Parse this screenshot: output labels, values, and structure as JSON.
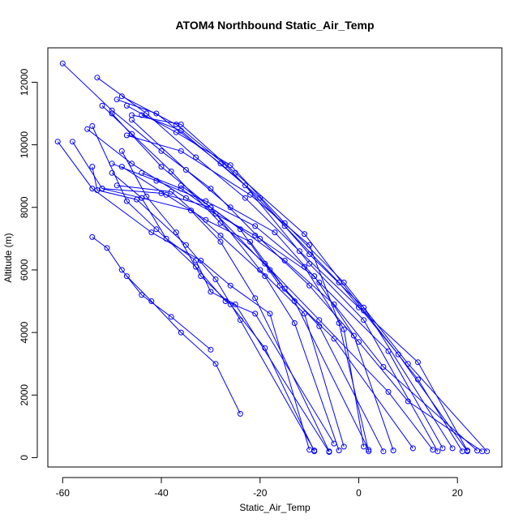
{
  "chart_data": {
    "type": "line",
    "title": "ATOM4 Northbound Static_Air_Temp",
    "xlabel": "Static_Air_Temp",
    "ylabel": "Altitude (m)",
    "xlim": [
      -63,
      29
    ],
    "ylim": [
      -300,
      13100
    ],
    "xticks": [
      -60,
      -40,
      -20,
      0,
      20
    ],
    "yticks": [
      0,
      2000,
      4000,
      6000,
      8000,
      10000,
      12000
    ],
    "grid": false,
    "legend": "none",
    "color": "#0000ff",
    "series": [
      {
        "values": [
          [
            -60.0,
            12600
          ],
          [
            -50.0,
            11100
          ],
          [
            -40.0,
            9800
          ],
          [
            -30.0,
            8600
          ],
          [
            -20.0,
            7000
          ],
          [
            -10.0,
            5500
          ],
          [
            0.0,
            3700
          ],
          [
            10.0,
            1800
          ],
          [
            25.0,
            200
          ]
        ]
      },
      {
        "values": [
          [
            -53.0,
            12150
          ],
          [
            -43.0,
            11000
          ],
          [
            -33.0,
            9600
          ],
          [
            -23.0,
            8300
          ],
          [
            -12.0,
            6600
          ],
          [
            0.0,
            4800
          ],
          [
            12.0,
            3050
          ],
          [
            22.0,
            230
          ]
        ]
      },
      {
        "values": [
          [
            -48.0,
            11550
          ],
          [
            -37.0,
            10650
          ],
          [
            -27.0,
            9350
          ],
          [
            -15.0,
            7400
          ],
          [
            -4.0,
            5600
          ],
          [
            8.0,
            3300
          ],
          [
            22.0,
            200
          ]
        ]
      },
      {
        "values": [
          [
            -49.0,
            11450
          ],
          [
            -41.0,
            11000
          ],
          [
            -28.0,
            9400
          ],
          [
            -20.0,
            8300
          ],
          [
            -10.0,
            6500
          ],
          [
            1.0,
            4800
          ],
          [
            19.0,
            300
          ]
        ]
      },
      {
        "values": [
          [
            -52.0,
            11250
          ],
          [
            -46.0,
            10350
          ],
          [
            -38.0,
            9150
          ],
          [
            -28.0,
            7500
          ],
          [
            -19.0,
            6200
          ],
          [
            -8.0,
            4400
          ],
          [
            6.0,
            2100
          ],
          [
            15.0,
            250
          ]
        ]
      },
      {
        "values": [
          [
            -50.0,
            11000
          ],
          [
            -40.0,
            9300
          ],
          [
            -30.0,
            8000
          ],
          [
            -15.0,
            6300
          ],
          [
            -5.0,
            4900
          ],
          [
            5.0,
            2900
          ],
          [
            24.0,
            220
          ]
        ]
      },
      {
        "values": [
          [
            -47.0,
            11250
          ],
          [
            -37.0,
            10400
          ],
          [
            -26.0,
            9350
          ],
          [
            -15.0,
            7500
          ],
          [
            -3.0,
            5600
          ],
          [
            10.0,
            3000
          ],
          [
            26.0,
            200
          ]
        ]
      },
      {
        "values": [
          [
            -46.0,
            10950
          ],
          [
            -36.0,
            10650
          ],
          [
            -25.0,
            9100
          ],
          [
            -11.0,
            7150
          ],
          [
            1.0,
            4700
          ],
          [
            12.0,
            2500
          ],
          [
            21.0,
            200
          ]
        ]
      },
      {
        "values": [
          [
            -44.0,
            10950
          ],
          [
            -36.0,
            10450
          ],
          [
            -23.0,
            8700
          ],
          [
            -10.0,
            6200
          ],
          [
            1.0,
            4400
          ],
          [
            16.0,
            200
          ]
        ]
      },
      {
        "values": [
          [
            -55.0,
            10500
          ],
          [
            -46.0,
            9400
          ],
          [
            -35.0,
            8300
          ],
          [
            -21.0,
            7100
          ],
          [
            -9.0,
            5800
          ],
          [
            -1.0,
            3900
          ],
          [
            7.0,
            230
          ]
        ]
      },
      {
        "values": [
          [
            -47.0,
            10300
          ],
          [
            -36.0,
            9800
          ],
          [
            -22.0,
            8400
          ],
          [
            -10.0,
            6800
          ],
          [
            -4.0,
            4300
          ],
          [
            2.0,
            200
          ]
        ]
      },
      {
        "values": [
          [
            -50.0,
            9400
          ],
          [
            -41.0,
            8850
          ],
          [
            -31.0,
            8200
          ],
          [
            -21.0,
            7400
          ],
          [
            -11.0,
            6100
          ],
          [
            -3.0,
            4100
          ],
          [
            1.0,
            350
          ]
        ]
      },
      {
        "values": [
          [
            -48.0,
            9300
          ],
          [
            -39.0,
            8400
          ],
          [
            -31.0,
            7600
          ],
          [
            -22.0,
            6900
          ],
          [
            -15.0,
            5400
          ],
          [
            -8.0,
            4200
          ],
          [
            5.0,
            200
          ]
        ]
      },
      {
        "values": [
          [
            -44.0,
            9100
          ],
          [
            -36.0,
            8600
          ],
          [
            -29.0,
            7800
          ],
          [
            -18.0,
            6000
          ],
          [
            -13.0,
            5000
          ],
          [
            2.0,
            250
          ]
        ]
      },
      {
        "values": [
          [
            -61.0,
            10100
          ],
          [
            -54.0,
            8600
          ],
          [
            -42.0,
            7200
          ],
          [
            -32.0,
            6300
          ],
          [
            -26.0,
            5500
          ],
          [
            -18.0,
            4600
          ],
          [
            -10.0,
            250
          ]
        ]
      },
      {
        "values": [
          [
            -58.0,
            10100
          ],
          [
            -52.0,
            8600
          ],
          [
            -44.0,
            8300
          ],
          [
            -34.0,
            7900
          ],
          [
            -28.0,
            6900
          ],
          [
            -21.0,
            5100
          ],
          [
            -6.0,
            200
          ]
        ]
      },
      {
        "values": [
          [
            -54.0,
            9300
          ],
          [
            -53.0,
            8550
          ],
          [
            -45.0,
            8250
          ],
          [
            -35.0,
            6800
          ],
          [
            -29.0,
            5700
          ],
          [
            -24.0,
            4400
          ],
          [
            -9.0,
            230
          ]
        ]
      },
      {
        "values": [
          [
            -54.0,
            10600
          ],
          [
            -47.0,
            8200
          ],
          [
            -41.0,
            7300
          ],
          [
            -33.0,
            6100
          ],
          [
            -27.0,
            5000
          ],
          [
            -21.0,
            4600
          ],
          [
            -5.0,
            450
          ]
        ]
      },
      {
        "values": [
          [
            -48.0,
            9800
          ],
          [
            -43.0,
            8350
          ],
          [
            -37.0,
            7200
          ],
          [
            -32.0,
            5800
          ],
          [
            -26.0,
            4900
          ],
          [
            -19.0,
            3500
          ],
          [
            -9.0,
            200
          ]
        ]
      },
      {
        "values": [
          [
            -50.0,
            9100
          ],
          [
            -44.0,
            8300
          ],
          [
            -39.0,
            7000
          ],
          [
            -33.0,
            6300
          ],
          [
            -30.0,
            5300
          ],
          [
            -25.0,
            4900
          ],
          [
            -6.0,
            180
          ]
        ]
      },
      {
        "values": [
          [
            -54.0,
            7050
          ],
          [
            -51.0,
            6700
          ],
          [
            -48.0,
            6000
          ],
          [
            -44.0,
            5200
          ],
          [
            -38.0,
            4500
          ],
          [
            -30.0,
            3450
          ]
        ]
      },
      {
        "values": [
          [
            -47.0,
            5800
          ],
          [
            -42.0,
            5000
          ],
          [
            -36.0,
            4000
          ],
          [
            -29.0,
            3000
          ],
          [
            -24.0,
            1400
          ]
        ]
      },
      {
        "values": [
          [
            -52.0,
            8600
          ],
          [
            -40.0,
            8450
          ],
          [
            -30.0,
            8000
          ],
          [
            -20.0,
            6000
          ],
          [
            -11.0,
            4600
          ],
          [
            -3.0,
            350
          ]
        ]
      },
      {
        "values": [
          [
            -49.0,
            8700
          ],
          [
            -38.0,
            8500
          ],
          [
            -28.0,
            7100
          ],
          [
            -19.0,
            5800
          ],
          [
            -13.0,
            4300
          ],
          [
            -4.0,
            230
          ]
        ]
      },
      {
        "values": [
          [
            -36.0,
            8700
          ],
          [
            -30.0,
            8000
          ],
          [
            -24.0,
            7300
          ],
          [
            -16.0,
            5500
          ],
          [
            -5.0,
            3800
          ],
          [
            11.0,
            300
          ]
        ]
      },
      {
        "values": [
          [
            -46.0,
            10800
          ],
          [
            -35.0,
            9200
          ],
          [
            -26.0,
            8000
          ],
          [
            -17.0,
            7200
          ],
          [
            -8.0,
            5600
          ],
          [
            6.0,
            3400
          ],
          [
            17.0,
            300
          ]
        ]
      }
    ]
  }
}
